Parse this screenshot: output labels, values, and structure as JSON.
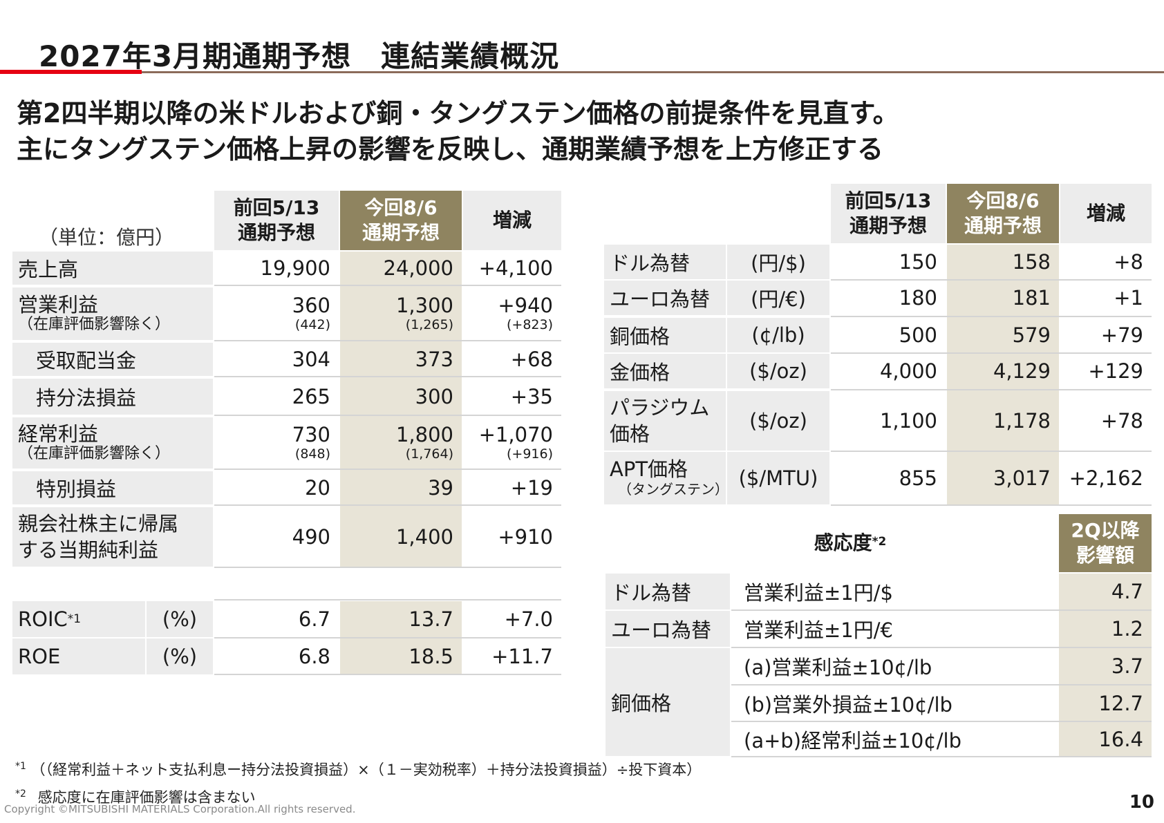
{
  "title": "2027年3月期通期予想　連結業績概況",
  "headline": {
    "line1": "第2四半期以降の米ドルおよび銅・タングステン価格の前提条件を見直す。",
    "line2": "主にタングステン価格上昇の影響を反映し、通期業績予想を上方修正する"
  },
  "left_table": {
    "unit": "（単位：億円）",
    "headers": {
      "prev_line1": "前回5/13",
      "prev_line2": "通期予想",
      "curr_line1": "今回8/6",
      "curr_line2": "通期予想",
      "diff": "増減"
    },
    "rows": [
      {
        "label": "売上高",
        "prev": "19,900",
        "curr": "24,000",
        "diff": "+4,100"
      },
      {
        "label": "営業利益",
        "sub": "（在庫評価影響除く）",
        "prev": "360",
        "prev_sub": "(442)",
        "curr": "1,300",
        "curr_sub": "(1,265)",
        "diff": "+940",
        "diff_sub": "(+823)"
      },
      {
        "label": "受取配当金",
        "prev": "304",
        "curr": "373",
        "diff": "+68"
      },
      {
        "label": "持分法損益",
        "prev": "265",
        "curr": "300",
        "diff": "+35"
      },
      {
        "label": "経常利益",
        "sub": "（在庫評価影響除く）",
        "prev": "730",
        "prev_sub": "(848)",
        "curr": "1,800",
        "curr_sub": "(1,764)",
        "diff": "+1,070",
        "diff_sub": "(+916)"
      },
      {
        "label": "特別損益",
        "prev": "20",
        "curr": "39",
        "diff": "+19"
      },
      {
        "label_line1": "親会社株主に帰属",
        "label_line2": "する当期純利益",
        "prev": "490",
        "curr": "1,400",
        "diff": "+910"
      }
    ],
    "ratios": [
      {
        "label": "ROIC",
        "sup": "*1",
        "unit": "(%)",
        "prev": "6.7",
        "curr": "13.7",
        "diff": "+7.0"
      },
      {
        "label": "ROE",
        "sup": "",
        "unit": "(%)",
        "prev": "6.8",
        "curr": "18.5",
        "diff": "+11.7"
      }
    ]
  },
  "right_table": {
    "headers": {
      "prev_line1": "前回5/13",
      "prev_line2": "通期予想",
      "curr_line1": "今回8/6",
      "curr_line2": "通期予想",
      "diff": "増減"
    },
    "rows": [
      {
        "label": "ドル為替",
        "unit": "(円/$)",
        "prev": "150",
        "curr": "158",
        "diff": "+8"
      },
      {
        "label": "ユーロ為替",
        "unit": "(円/€)",
        "prev": "180",
        "curr": "181",
        "diff": "+1"
      },
      {
        "label": "銅価格",
        "unit": "(¢/lb)",
        "prev": "500",
        "curr": "579",
        "diff": "+79"
      },
      {
        "label": "金価格",
        "unit": "($/oz)",
        "prev": "4,000",
        "curr": "4,129",
        "diff": "+129"
      },
      {
        "label_line1": "パラジウム",
        "label_line2": "価格",
        "unit": "($/oz)",
        "prev": "1,100",
        "curr": "1,178",
        "diff": "+78"
      },
      {
        "label": "APT価格",
        "sub": "（タングステン）",
        "unit": "($/MTU)",
        "prev": "855",
        "curr": "3,017",
        "diff": "+2,162"
      }
    ]
  },
  "sensitivity": {
    "title": "感応度",
    "title_sup": "*2",
    "header_line1": "2Q以降",
    "header_line2": "影響額",
    "rows": [
      {
        "group": "ドル為替",
        "item": "営業利益±1円/$",
        "value": "4.7"
      },
      {
        "group": "ユーロ為替",
        "item": "営業利益±1円/€",
        "value": "1.2"
      },
      {
        "group": "銅価格",
        "item": "(a)営業利益±10¢/lb",
        "value": "3.7"
      },
      {
        "group": "",
        "item": "(b)営業外損益±10¢/lb",
        "value": "12.7"
      },
      {
        "group": "",
        "item": "(a+b)経常利益±10¢/lb",
        "value": "16.4"
      }
    ]
  },
  "footnotes": {
    "n1_mark": "*1",
    "n1_text": "（（経常利益＋ネット支払利息ー持分法投資損益）×（１－実効税率）＋持分法投資損益）÷投下資本）",
    "n2_mark": "*2",
    "n2_text": "感応度に在庫評価影響は含まない"
  },
  "copyright": "Copyright ©MITSUBISHI MATERIALS Corporation.All rights reserved.",
  "page_number": "10"
}
